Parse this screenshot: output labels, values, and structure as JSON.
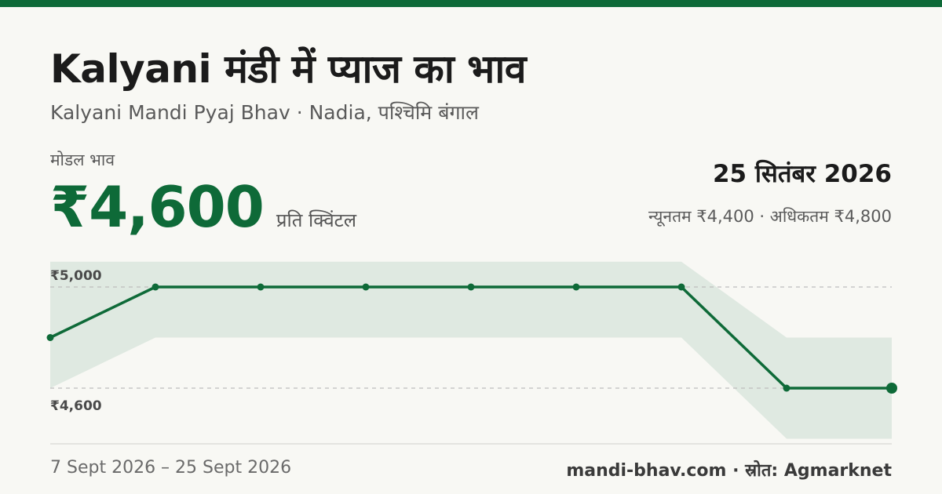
{
  "header": {
    "title": "Kalyani मंडी में प्याज का भाव",
    "subtitle": "Kalyani Mandi Pyaj Bhav · Nadia, पश्चिमि बंगाल"
  },
  "summary": {
    "modal_label": "मोडल भाव",
    "modal_price": "₹4,600",
    "unit": "प्रति क्विंटल",
    "date": "25 सितंबर 2026",
    "min_max": "न्यूनतम ₹4,400 · अधिकतम ₹4,800"
  },
  "footer": {
    "range": "7 Sept 2026 – 25 Sept 2026",
    "credit": "mandi-bhav.com · स्रोत: Agmarknet"
  },
  "colors": {
    "accent": "#0e6a38",
    "band": "#dfe9e1",
    "background": "#f8f8f4",
    "gridline": "#bdbdbd"
  },
  "chart_data": {
    "type": "line",
    "series": [
      {
        "values": [
          4800,
          5000,
          5000,
          5000,
          5000,
          5000,
          5000,
          4600,
          4600
        ]
      }
    ],
    "band": {
      "min": [
        4600,
        4800,
        4800,
        4800,
        4800,
        4800,
        4800,
        4400,
        4400
      ],
      "max": [
        5100,
        5100,
        5100,
        5100,
        5100,
        5100,
        5100,
        4800,
        4800
      ]
    },
    "y_ticks": [
      {
        "value": 5000,
        "label": "₹5,000"
      },
      {
        "value": 4600,
        "label": "₹4,600"
      }
    ],
    "grid": "dashed horizontal at tick values",
    "legend": "none"
  }
}
